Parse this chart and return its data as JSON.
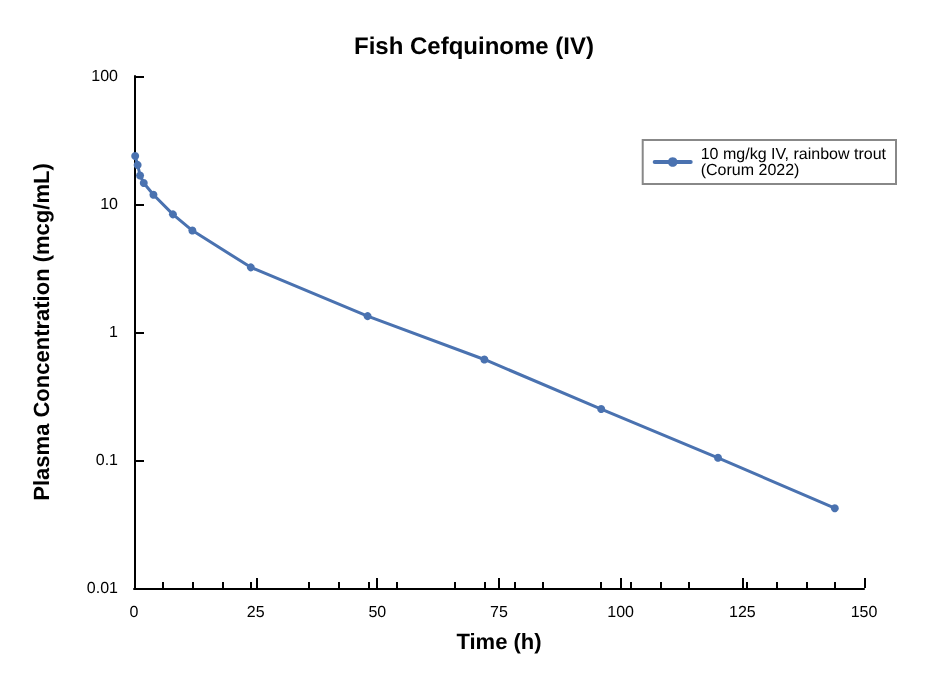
{
  "chart_data": {
    "type": "line",
    "title": "Fish Cefquinome (IV)",
    "xlabel": "Time (h)",
    "ylabel": "Plasma Concentration (mcg/mL)",
    "series": [
      {
        "name": "10 mg/kg IV, rainbow trout\n(Corum 2022)",
        "color": "#4a72b0",
        "x": [
          0.25,
          0.75,
          1.25,
          2,
          4,
          8,
          12,
          24,
          48,
          72,
          96,
          120,
          144
        ],
        "values": [
          23.7,
          20.2,
          16.7,
          14.6,
          11.8,
          8.3,
          6.2,
          3.2,
          1.33,
          0.61,
          0.25,
          0.104,
          0.042
        ]
      }
    ],
    "xlim": [
      0,
      150
    ],
    "xticks": [
      0,
      25,
      50,
      75,
      100,
      125,
      150
    ],
    "ylim": [
      0.01,
      100
    ],
    "yticks": [
      0.01,
      0.1,
      1,
      10,
      100
    ],
    "log": "y",
    "grid": false,
    "legend": "top right",
    "marker": "circle",
    "line_style": "solid"
  }
}
